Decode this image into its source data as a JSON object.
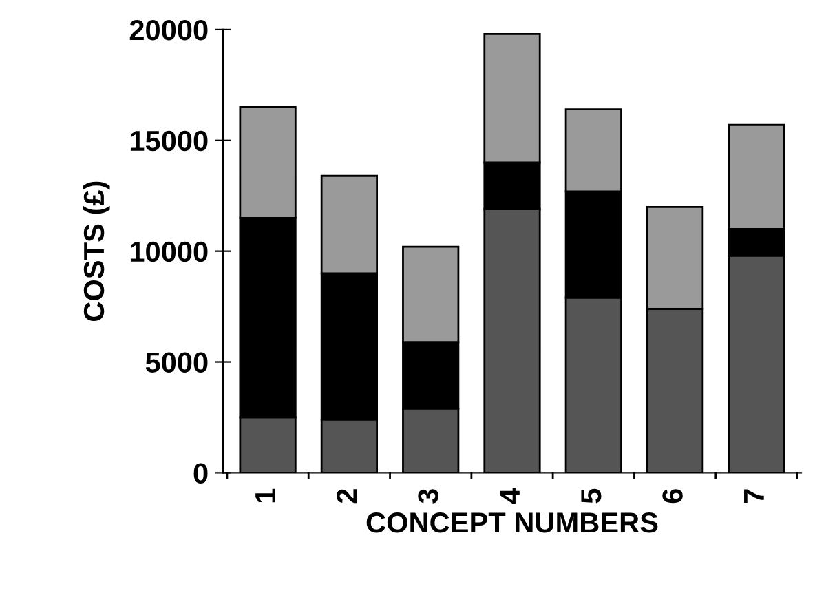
{
  "chart_data": {
    "type": "bar",
    "stacked": true,
    "xlabel": "CONCEPT NUMBERS",
    "ylabel": "COSTS (£)",
    "categories": [
      "1",
      "2",
      "3",
      "4",
      "5",
      "6",
      "7"
    ],
    "series": [
      {
        "color": "#555555",
        "values": [
          2500,
          2400,
          2900,
          11900,
          7900,
          7400,
          9800
        ]
      },
      {
        "color": "#000000",
        "values": [
          9000,
          6600,
          3000,
          2100,
          4800,
          0,
          1200
        ]
      },
      {
        "color": "#9a9a9a",
        "values": [
          5000,
          4400,
          4300,
          5800,
          3700,
          4600,
          4700
        ]
      }
    ],
    "ylim": [
      0,
      20000
    ],
    "yticks": [
      0,
      5000,
      10000,
      15000,
      20000
    ],
    "grid": false,
    "legend": false
  }
}
